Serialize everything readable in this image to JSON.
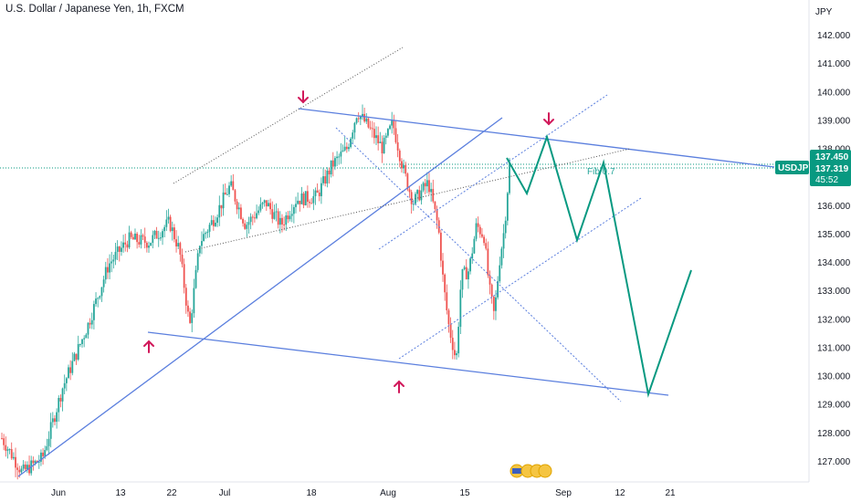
{
  "header": {
    "title": "U.S. Dollar / Japanese Yen, 1h, FXCM"
  },
  "chart_data": {
    "type": "candlestick",
    "y_axis_unit": "JPY",
    "x_tick_labels": [
      "Jun",
      "13",
      "22",
      "Jul",
      "18",
      "Aug",
      "15",
      "Sep",
      "12",
      "21"
    ],
    "y_tick_labels": [
      "142.000",
      "141.000",
      "140.000",
      "139.000",
      "138.000",
      "137.000",
      "136.000",
      "135.000",
      "134.000",
      "133.000",
      "132.000",
      "131.000",
      "130.000",
      "129.000",
      "128.000",
      "127.000"
    ],
    "ylim": [
      126.6,
      142.5
    ],
    "symbol_tag": "USDJPY",
    "price_tags": {
      "upper": "137.450",
      "current": "137.319",
      "countdown": "45:52"
    },
    "annotations": {
      "fib_label": "Fib 0.7"
    },
    "approx_close_path": [
      {
        "t": 0,
        "p": 127.8
      },
      {
        "t": 0.04,
        "p": 126.6
      },
      {
        "t": 0.08,
        "p": 127.1
      },
      {
        "t": 0.12,
        "p": 129.6
      },
      {
        "t": 0.17,
        "p": 131.8
      },
      {
        "t": 0.21,
        "p": 133.9
      },
      {
        "t": 0.25,
        "p": 134.8
      },
      {
        "t": 0.29,
        "p": 134.7
      },
      {
        "t": 0.33,
        "p": 135.4
      },
      {
        "t": 0.35,
        "p": 134.4
      },
      {
        "t": 0.37,
        "p": 131.7
      },
      {
        "t": 0.39,
        "p": 134.7
      },
      {
        "t": 0.42,
        "p": 135.6
      },
      {
        "t": 0.45,
        "p": 136.7
      },
      {
        "t": 0.48,
        "p": 135.3
      },
      {
        "t": 0.52,
        "p": 136.1
      },
      {
        "t": 0.55,
        "p": 135.3
      },
      {
        "t": 0.58,
        "p": 136.2
      },
      {
        "t": 0.62,
        "p": 136.3
      },
      {
        "t": 0.65,
        "p": 137.4
      },
      {
        "t": 0.68,
        "p": 138.0
      },
      {
        "t": 0.7,
        "p": 139.3
      },
      {
        "t": 0.72,
        "p": 138.8
      },
      {
        "t": 0.75,
        "p": 138.0
      },
      {
        "t": 0.77,
        "p": 138.9
      },
      {
        "t": 0.79,
        "p": 137.3
      },
      {
        "t": 0.81,
        "p": 136.1
      },
      {
        "t": 0.84,
        "p": 136.8
      },
      {
        "t": 0.86,
        "p": 135.2
      },
      {
        "t": 0.87,
        "p": 133.2
      },
      {
        "t": 0.88,
        "p": 131.8
      },
      {
        "t": 0.895,
        "p": 130.5
      },
      {
        "t": 0.905,
        "p": 133.5
      },
      {
        "t": 0.92,
        "p": 133.7
      },
      {
        "t": 0.935,
        "p": 135.3
      },
      {
        "t": 0.95,
        "p": 134.9
      },
      {
        "t": 0.96,
        "p": 133.1
      },
      {
        "t": 0.97,
        "p": 132.1
      },
      {
        "t": 0.98,
        "p": 134.0
      },
      {
        "t": 0.99,
        "p": 135.2
      },
      {
        "t": 1.0,
        "p": 137.4
      }
    ]
  },
  "colors": {
    "up": "#26a69a",
    "down": "#ef5350",
    "trendline": "#5b7fde",
    "projection": "#089981",
    "arrow": "#d1185a",
    "axis_text": "#131722",
    "price_tag": "#089981"
  }
}
